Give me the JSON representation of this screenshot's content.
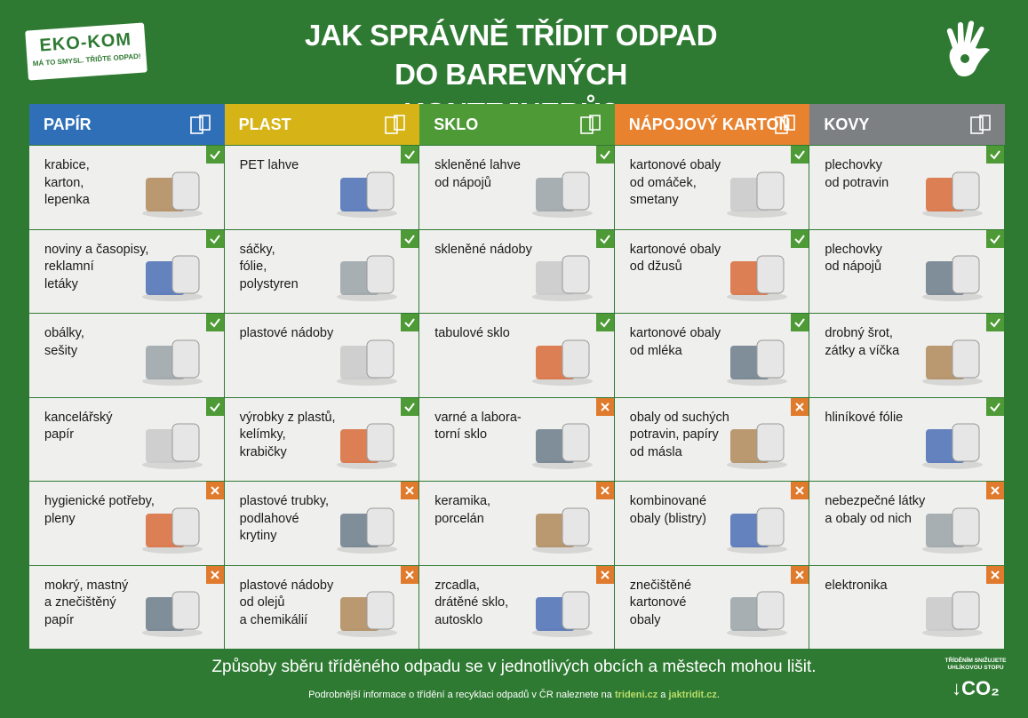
{
  "header": {
    "logo": {
      "brand": "EKO-KOM",
      "slogan": "MÁ TO SMYSL. TŘIĎTE ODPAD!"
    },
    "title": [
      "JAK SPRÁVNĚ TŘÍDIT ODPAD",
      "DO BAREVNÝCH KONTEJNERŮ?"
    ]
  },
  "columns": [
    {
      "name": "PAPÍR",
      "color": "#2f6fb8",
      "items": [
        {
          "label": "krabice,\nkarton,\nlepenka",
          "accepted": true
        },
        {
          "label": "noviny a časopisy,\nreklamní\nletáky",
          "accepted": true
        },
        {
          "label": "obálky,\nsešity",
          "accepted": true
        },
        {
          "label": "kancelářský\npapír",
          "accepted": true
        },
        {
          "label": "hygienické potřeby,\npleny",
          "accepted": false
        },
        {
          "label": "mokrý, mastný\na znečištěný\npapír",
          "accepted": false
        }
      ]
    },
    {
      "name": "PLAST",
      "color": "#d6b317",
      "items": [
        {
          "label": "PET lahve",
          "accepted": true
        },
        {
          "label": "sáčky,\nfólie,\npolystyren",
          "accepted": true
        },
        {
          "label": "plastové nádoby",
          "accepted": true
        },
        {
          "label": "výrobky z plastů,\nkelímky,\nkrabičky",
          "accepted": true
        },
        {
          "label": "plastové trubky,\npodlahové\nkrytiny",
          "accepted": false
        },
        {
          "label": "plastové nádoby\nod olejů\na chemikálií",
          "accepted": false
        }
      ]
    },
    {
      "name": "SKLO",
      "color": "#4e9a36",
      "items": [
        {
          "label": "skleněné lahve\nod nápojů",
          "accepted": true
        },
        {
          "label": "skleněné nádoby",
          "accepted": true
        },
        {
          "label": "tabulové sklo",
          "accepted": true
        },
        {
          "label": "varné a labora-\ntorní sklo",
          "accepted": false
        },
        {
          "label": "keramika,\nporcelán",
          "accepted": false
        },
        {
          "label": "zrcadla,\ndrátěné sklo,\nautosklo",
          "accepted": false
        }
      ]
    },
    {
      "name": "NÁPOJOVÝ KARTON",
      "color": "#e8822e",
      "items": [
        {
          "label": "kartonové obaly\nod omáček,\nsmetany",
          "accepted": true
        },
        {
          "label": "kartonové obaly\nod džusů",
          "accepted": true
        },
        {
          "label": "kartonové obaly\nod mléka",
          "accepted": true
        },
        {
          "label": "obaly od suchých\npotravin, papíry\nod másla",
          "accepted": false
        },
        {
          "label": "kombinované\nobaly (blistry)",
          "accepted": false
        },
        {
          "label": "znečištěné\nkartonové\nobaly",
          "accepted": false
        }
      ]
    },
    {
      "name": "KOVY",
      "color": "#7c8083",
      "items": [
        {
          "label": "plechovky\nod potravin",
          "accepted": true
        },
        {
          "label": "plechovky\nod nápojů",
          "accepted": true
        },
        {
          "label": "drobný šrot,\nzátky a víčka",
          "accepted": true
        },
        {
          "label": "hliníkové fólie",
          "accepted": true
        },
        {
          "label": "nebezpečné látky\na obaly od nich",
          "accepted": false
        },
        {
          "label": "elektronika",
          "accepted": false
        }
      ]
    }
  ],
  "footer": {
    "note": "Způsoby sběru tříděného odpadu se v jednotlivých obcích a městech mohou lišit.",
    "info": [
      "Podrobnější informace o třídění a recyklaci odpadů v ČR naleznete na ",
      "trideni.cz",
      " a ",
      "jaktridit.cz",
      "."
    ],
    "badge": {
      "text": "TŘÍDĚNÍM SNIŽUJETE UHLÍKOVOU STOPU",
      "co2": "↓CO₂"
    }
  }
}
